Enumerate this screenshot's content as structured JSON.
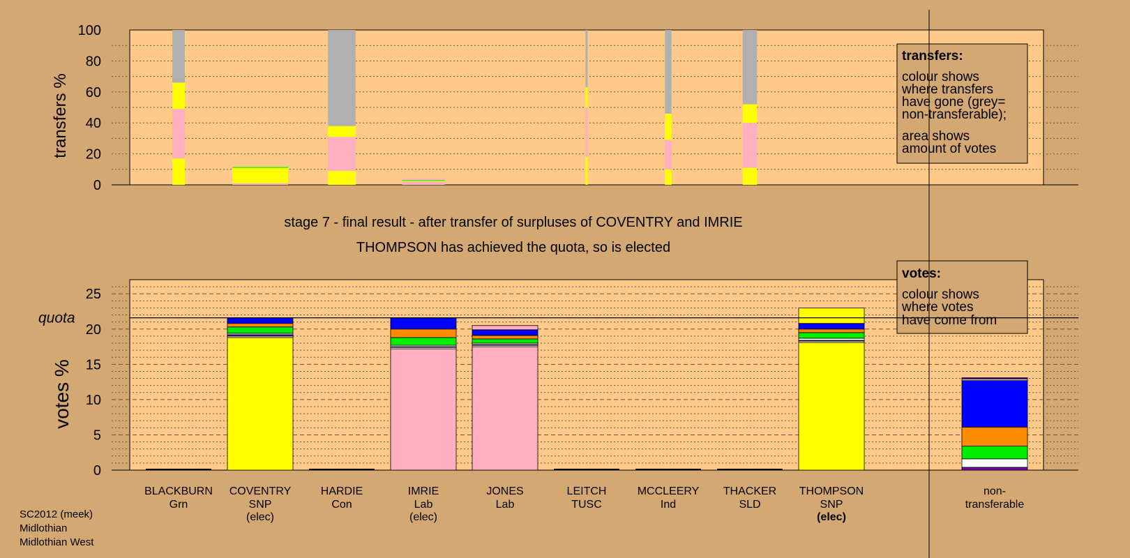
{
  "caption": {
    "stage_line": "stage 7 - final result - after transfer of surpluses of COVENTRY and IMRIE",
    "result_line": "THOMPSON has achieved the quota, so is elected"
  },
  "footer": {
    "line1": "SC2012 (meek)",
    "line2": "Midlothian",
    "line3": "Midlothian West"
  },
  "colors": {
    "background": "#d4a872",
    "plot_bg": "#ffc98a",
    "SNP": "#ffff00",
    "Lab": "#ffb0c0",
    "Con": "#0000ff",
    "SLD": "#ff8c00",
    "Grn": "#00ee00",
    "TUSC": "#ffffff",
    "Ind": "#6a0dad",
    "non_transferable": "#b0b0b0"
  },
  "chart_data": [
    {
      "type": "bar",
      "stacked": true,
      "ylabel": "transfers %",
      "ylim": [
        0,
        100
      ],
      "yticks": [
        0,
        20,
        40,
        60,
        80,
        100
      ],
      "grid": true,
      "legend_box": {
        "title": "transfers:",
        "lines1": [
          "colour shows",
          "where transfers",
          "have gone (grey=",
          "non-transferable);"
        ],
        "lines2": [
          "area shows",
          "amount of votes"
        ],
        "placement": "top-right"
      },
      "columns": [
        {
          "candidate": "BLACKBURN",
          "weight": 0.19,
          "segments": [
            {
              "color": "#ffff00",
              "value": 17
            },
            {
              "color": "#ffb0c0",
              "value": 32
            },
            {
              "color": "#ffff00",
              "value": 17
            },
            {
              "color": "#b0b0b0",
              "value": 34
            }
          ]
        },
        {
          "candidate": "COVENTRY",
          "weight": 0.85,
          "segments": [
            {
              "color": "#ffb0c0",
              "value": 1
            },
            {
              "color": "#ffff00",
              "value": 10
            },
            {
              "color": "#00ee00",
              "value": 0.5
            }
          ]
        },
        {
          "candidate": "HARDIE",
          "weight": 0.42,
          "segments": [
            {
              "color": "#ffff00",
              "value": 9
            },
            {
              "color": "#ffb0c0",
              "value": 22
            },
            {
              "color": "#ffff00",
              "value": 7
            },
            {
              "color": "#b0b0b0",
              "value": 62
            }
          ]
        },
        {
          "candidate": "IMRIE",
          "weight": 0.65,
          "segments": [
            {
              "color": "#ffb0c0",
              "value": 2
            },
            {
              "color": "#ffff00",
              "value": 0.5
            },
            {
              "color": "#00ee00",
              "value": 0.5
            },
            {
              "color": "#ffb0c0",
              "value": 1
            }
          ]
        },
        {
          "candidate": "LEITCH",
          "weight": 0.03,
          "segments": [
            {
              "color": "#ffff00",
              "value": 18
            },
            {
              "color": "#ffb0c0",
              "value": 32
            },
            {
              "color": "#ffff00",
              "value": 13
            },
            {
              "color": "#b0b0b0",
              "value": 37
            }
          ]
        },
        {
          "candidate": "MCCLEERY",
          "weight": 0.1,
          "segments": [
            {
              "color": "#ffff00",
              "value": 10
            },
            {
              "color": "#ffb0c0",
              "value": 19
            },
            {
              "color": "#ffff00",
              "value": 17
            },
            {
              "color": "#b0b0b0",
              "value": 54
            }
          ]
        },
        {
          "candidate": "THACKER",
          "weight": 0.22,
          "segments": [
            {
              "color": "#ffff00",
              "value": 11
            },
            {
              "color": "#ffb0c0",
              "value": 29
            },
            {
              "color": "#ffff00",
              "value": 12
            },
            {
              "color": "#b0b0b0",
              "value": 48
            }
          ]
        }
      ]
    },
    {
      "type": "bar",
      "stacked": true,
      "ylabel": "votes %",
      "ylim": [
        0,
        27
      ],
      "yticks": [
        0,
        5,
        10,
        15,
        20,
        25
      ],
      "grid": true,
      "quota": 21.6,
      "quota_label": "quota",
      "legend_box": {
        "title": "votes:",
        "lines1": [
          "colour shows",
          "where votes",
          "have come from"
        ],
        "placement": "top-right"
      },
      "candidates": [
        {
          "name": "BLACKBURN",
          "party": "Grn",
          "status": "",
          "segments": []
        },
        {
          "name": "COVENTRY",
          "party": "SNP",
          "status": "(elec)",
          "segments": [
            {
              "color": "#ffff00",
              "value": 18.8
            },
            {
              "color": "#ffffff",
              "value": 0.2
            },
            {
              "color": "#6a0dad",
              "value": 0.2
            },
            {
              "color": "#ffffff",
              "value": 0.2
            },
            {
              "color": "#00ee00",
              "value": 0.9
            },
            {
              "color": "#ff8c00",
              "value": 0.5
            },
            {
              "color": "#0000ff",
              "value": 0.8
            }
          ]
        },
        {
          "name": "HARDIE",
          "party": "Con",
          "status": "",
          "segments": []
        },
        {
          "name": "IMRIE",
          "party": "Lab",
          "status": "(elec)",
          "segments": [
            {
              "color": "#ffb0c0",
              "value": 17.2
            },
            {
              "color": "#ffffff",
              "value": 0.2
            },
            {
              "color": "#6a0dad",
              "value": 0.1
            },
            {
              "color": "#ffffff",
              "value": 0.2
            },
            {
              "color": "#00ee00",
              "value": 1.1
            },
            {
              "color": "#ff8c00",
              "value": 1.2
            },
            {
              "color": "#0000ff",
              "value": 1.6
            }
          ]
        },
        {
          "name": "JONES",
          "party": "Lab",
          "status": "",
          "segments": [
            {
              "color": "#ffb0c0",
              "value": 17.5
            },
            {
              "color": "#ffffff",
              "value": 0.2
            },
            {
              "color": "#6a0dad",
              "value": 0.1
            },
            {
              "color": "#ffffff",
              "value": 0.2
            },
            {
              "color": "#00ee00",
              "value": 0.6
            },
            {
              "color": "#ff8c00",
              "value": 0.5
            },
            {
              "color": "#0000ff",
              "value": 0.8
            },
            {
              "color": "#ffb0c0",
              "value": 0.6
            }
          ]
        },
        {
          "name": "LEITCH",
          "party": "TUSC",
          "status": "",
          "segments": []
        },
        {
          "name": "MCCLEERY",
          "party": "Ind",
          "status": "",
          "segments": []
        },
        {
          "name": "THACKER",
          "party": "SLD",
          "status": "",
          "segments": []
        },
        {
          "name": "THOMPSON",
          "party": "SNP",
          "status": "(elec)",
          "segments": [
            {
              "color": "#ffff00",
              "value": 18.1
            },
            {
              "color": "#ffffff",
              "value": 0.2
            },
            {
              "color": "#6a0dad",
              "value": 0.1
            },
            {
              "color": "#ffffff",
              "value": 0.3
            },
            {
              "color": "#00ee00",
              "value": 0.8
            },
            {
              "color": "#ff8c00",
              "value": 0.5
            },
            {
              "color": "#0000ff",
              "value": 0.8
            },
            {
              "color": "#ffff00",
              "value": 2.2
            }
          ]
        }
      ],
      "non_transferable": {
        "label1": "non-",
        "label2": "transferable",
        "segments": [
          {
            "color": "#6a0dad",
            "value": 0.4
          },
          {
            "color": "#ffffff",
            "value": 1.2
          },
          {
            "color": "#00ee00",
            "value": 1.8
          },
          {
            "color": "#ff8c00",
            "value": 2.7
          },
          {
            "color": "#0000ff",
            "value": 6.6
          },
          {
            "color": "#ffffff",
            "value": 0.2
          },
          {
            "color": "#6a0dad",
            "value": 0.2
          }
        ]
      }
    }
  ]
}
